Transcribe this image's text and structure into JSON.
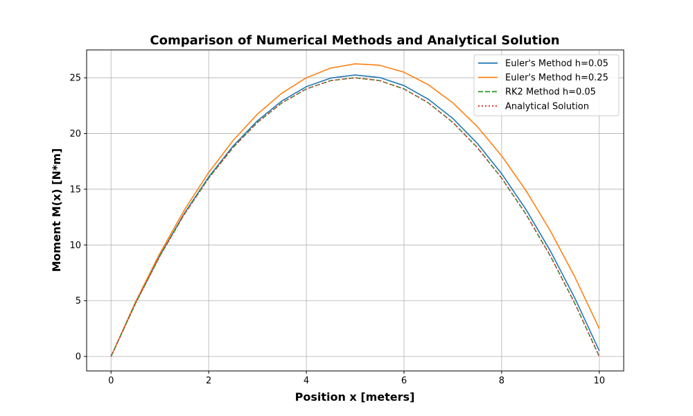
{
  "chart_data": {
    "type": "line",
    "title": "Comparison of Numerical Methods and Analytical Solution",
    "xlabel": "Position x [meters]",
    "ylabel": "Moment M(x) [N*m]",
    "xlim": [
      -0.5,
      10.5
    ],
    "ylim": [
      -1.3,
      27.5
    ],
    "xticks": [
      0,
      2,
      4,
      6,
      8,
      10
    ],
    "yticks": [
      0,
      5,
      10,
      15,
      20,
      25
    ],
    "grid": true,
    "legend_position": "top-right",
    "series": [
      {
        "name": "Euler's Method h=0.05",
        "color": "#1f77b4",
        "style": "solid",
        "x": [
          0,
          0.5,
          1,
          1.5,
          2,
          2.5,
          3,
          3.5,
          4,
          4.5,
          5,
          5.5,
          6,
          6.5,
          7,
          7.5,
          8,
          8.5,
          9,
          9.5,
          10
        ],
        "y": [
          0,
          4.775,
          9.05,
          12.825,
          16.1,
          18.875,
          21.15,
          22.925,
          24.2,
          24.975,
          25.25,
          25.025,
          24.3,
          23.075,
          21.35,
          19.125,
          16.4,
          13.175,
          9.45,
          5.225,
          0.5
        ]
      },
      {
        "name": "Euler's Method h=0.25",
        "color": "#ff7f0e",
        "style": "solid",
        "x": [
          0,
          0.5,
          1,
          1.5,
          2,
          2.5,
          3,
          3.5,
          4,
          4.5,
          5,
          5.5,
          6,
          6.5,
          7,
          7.5,
          8,
          8.5,
          9,
          9.5,
          10
        ],
        "y": [
          0,
          4.875,
          9.25,
          13.125,
          16.5,
          19.375,
          21.75,
          23.625,
          25.0,
          25.875,
          26.25,
          26.125,
          25.5,
          24.375,
          22.75,
          20.625,
          18.0,
          14.875,
          11.25,
          7.125,
          2.5
        ]
      },
      {
        "name": "RK2 Method h=0.05",
        "color": "#2ca02c",
        "style": "dashed",
        "x": [
          0,
          0.5,
          1,
          1.5,
          2,
          2.5,
          3,
          3.5,
          4,
          4.5,
          5,
          5.5,
          6,
          6.5,
          7,
          7.5,
          8,
          8.5,
          9,
          9.5,
          10
        ],
        "y": [
          0,
          4.75,
          9.0,
          12.75,
          16.0,
          18.75,
          21.0,
          22.75,
          24.0,
          24.75,
          25.0,
          24.75,
          24.0,
          22.75,
          21.0,
          18.75,
          16.0,
          12.75,
          9.0,
          4.75,
          0
        ]
      },
      {
        "name": "Analytical Solution",
        "color": "#d62728",
        "style": "dotted",
        "x": [
          0,
          0.5,
          1,
          1.5,
          2,
          2.5,
          3,
          3.5,
          4,
          4.5,
          5,
          5.5,
          6,
          6.5,
          7,
          7.5,
          8,
          8.5,
          9,
          9.5,
          10
        ],
        "y": [
          0,
          4.75,
          9.0,
          12.75,
          16.0,
          18.75,
          21.0,
          22.75,
          24.0,
          24.75,
          25.0,
          24.75,
          24.0,
          22.75,
          21.0,
          18.75,
          16.0,
          12.75,
          9.0,
          4.75,
          0
        ]
      }
    ]
  }
}
